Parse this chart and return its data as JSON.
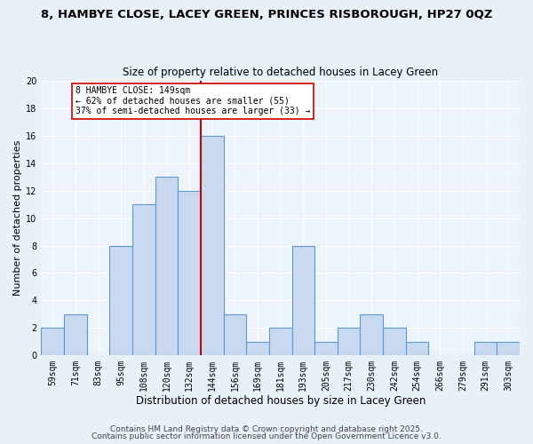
{
  "title1": "8, HAMBYE CLOSE, LACEY GREEN, PRINCES RISBOROUGH, HP27 0QZ",
  "title2": "Size of property relative to detached houses in Lacey Green",
  "xlabel": "Distribution of detached houses by size in Lacey Green",
  "ylabel": "Number of detached properties",
  "bin_labels": [
    "59sqm",
    "71sqm",
    "83sqm",
    "95sqm",
    "108sqm",
    "120sqm",
    "132sqm",
    "144sqm",
    "156sqm",
    "169sqm",
    "181sqm",
    "193sqm",
    "205sqm",
    "217sqm",
    "230sqm",
    "242sqm",
    "254sqm",
    "266sqm",
    "279sqm",
    "291sqm",
    "303sqm"
  ],
  "bar_heights": [
    2,
    3,
    0,
    8,
    11,
    13,
    12,
    16,
    3,
    1,
    2,
    8,
    1,
    2,
    3,
    2,
    1,
    0,
    0,
    1,
    1
  ],
  "bar_color": "#c9d9f0",
  "bar_edge_color": "#5b9bd5",
  "vline_x_index": 7,
  "vline_color": "#cc0000",
  "annotation_title": "8 HAMBYE CLOSE: 149sqm",
  "annotation_line1": "← 62% of detached houses are smaller (55)",
  "annotation_line2": "37% of semi-detached houses are larger (33) →",
  "annotation_box_color": "#ffffff",
  "annotation_box_edge": "#cc0000",
  "ylim": [
    0,
    20
  ],
  "yticks": [
    0,
    2,
    4,
    6,
    8,
    10,
    12,
    14,
    16,
    18,
    20
  ],
  "footer1": "Contains HM Land Registry data © Crown copyright and database right 2025.",
  "footer2": "Contains public sector information licensed under the Open Government Licence v3.0.",
  "background_color": "#e8f0f8",
  "plot_background": "#eef4fb",
  "title1_fontsize": 9.5,
  "title2_fontsize": 8.5,
  "xlabel_fontsize": 8.5,
  "ylabel_fontsize": 8.0,
  "tick_fontsize": 7.0,
  "annotation_fontsize": 7.0,
  "footer_fontsize": 6.5
}
